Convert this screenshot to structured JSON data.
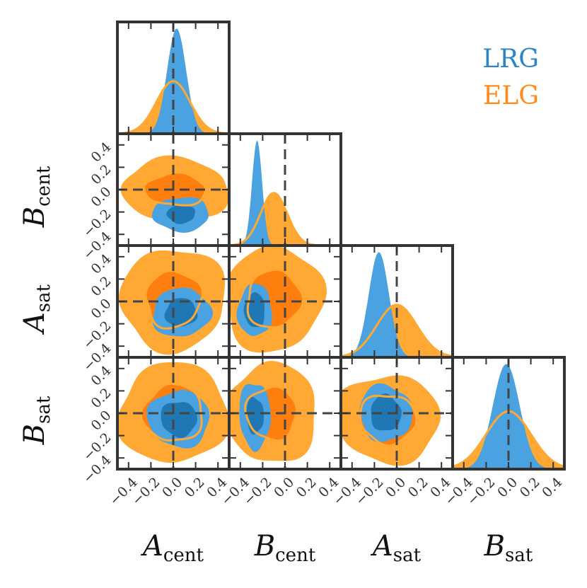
{
  "chart_data": {
    "type": "corner",
    "parameters": [
      {
        "key": "A_cent",
        "label_main": "A",
        "label_sub": "cent",
        "range": [
          -0.5,
          0.5
        ],
        "truth": 0.0
      },
      {
        "key": "B_cent",
        "label_main": "B",
        "label_sub": "cent",
        "range": [
          -0.5,
          0.5
        ],
        "truth": 0.0
      },
      {
        "key": "A_sat",
        "label_main": "A",
        "label_sub": "sat",
        "range": [
          -0.5,
          0.5
        ],
        "truth": 0.0
      },
      {
        "key": "B_sat",
        "label_main": "B",
        "label_sub": "sat",
        "range": [
          -0.5,
          0.5
        ],
        "truth": 0.0
      }
    ],
    "tick_values": [
      -0.4,
      -0.2,
      0.0,
      0.2,
      0.4
    ],
    "tick_labels": [
      "−0.4",
      "−0.2",
      "0.0",
      "0.2",
      "0.4"
    ],
    "series": [
      {
        "name": "LRG",
        "color_dark": "#1f77b4",
        "color_light": "#4aa3e0",
        "marginals": [
          {
            "mean": 0.03,
            "sd": 0.085,
            "peak": 1.0
          },
          {
            "mean": -0.25,
            "sd": 0.045,
            "peak": 1.0
          },
          {
            "mean": -0.16,
            "sd": 0.09,
            "peak": 1.0
          },
          {
            "mean": -0.02,
            "sd": 0.12,
            "peak": 1.0
          }
        ]
      },
      {
        "name": "ELG",
        "color_dark": "#ff7f0e",
        "color_light": "#ffa833",
        "marginals": [
          {
            "mean": 0.0,
            "sd": 0.15,
            "peak": 0.5
          },
          {
            "mean": -0.1,
            "sd": 0.12,
            "peak": 0.5
          },
          {
            "mean": 0.0,
            "sd": 0.18,
            "peak": 0.5
          },
          {
            "mean": 0.0,
            "sd": 0.2,
            "peak": 0.55
          }
        ]
      }
    ],
    "contours": [
      {
        "x": "A_cent",
        "y": "B_cent",
        "ELG": {
          "cx": 0.02,
          "cy": 0.0,
          "rx68": 0.28,
          "ry68": 0.14,
          "rx95": 0.48,
          "ry95": 0.28
        },
        "LRG": {
          "cx": 0.07,
          "cy": -0.22,
          "rx68": 0.13,
          "ry68": 0.08,
          "rx95": 0.26,
          "ry95": 0.15
        }
      },
      {
        "x": "A_cent",
        "y": "A_sat",
        "ELG": {
          "cx": 0.0,
          "cy": 0.02,
          "rx68": 0.25,
          "ry68": 0.25,
          "rx95": 0.48,
          "ry95": 0.45
        },
        "LRG": {
          "cx": 0.07,
          "cy": -0.1,
          "rx68": 0.14,
          "ry68": 0.13,
          "rx95": 0.26,
          "ry95": 0.22
        }
      },
      {
        "x": "A_cent",
        "y": "B_sat",
        "ELG": {
          "cx": 0.0,
          "cy": 0.0,
          "rx68": 0.26,
          "ry68": 0.26,
          "rx95": 0.48,
          "ry95": 0.46
        },
        "LRG": {
          "cx": 0.05,
          "cy": -0.05,
          "rx68": 0.16,
          "ry68": 0.16,
          "rx95": 0.27,
          "ry95": 0.26
        }
      },
      {
        "x": "B_cent",
        "y": "A_sat",
        "ELG": {
          "cx": -0.1,
          "cy": 0.02,
          "rx68": 0.24,
          "ry68": 0.26,
          "rx95": 0.44,
          "ry95": 0.47
        },
        "LRG": {
          "cx": -0.27,
          "cy": -0.08,
          "rx68": 0.09,
          "ry68": 0.16,
          "rx95": 0.15,
          "ry95": 0.24
        }
      },
      {
        "x": "B_cent",
        "y": "B_sat",
        "ELG": {
          "cx": -0.12,
          "cy": 0.0,
          "rx68": 0.22,
          "ry68": 0.24,
          "rx95": 0.4,
          "ry95": 0.46
        },
        "LRG": {
          "cx": -0.27,
          "cy": -0.02,
          "rx68": 0.08,
          "ry68": 0.16,
          "rx95": 0.14,
          "ry95": 0.3
        }
      },
      {
        "x": "A_sat",
        "y": "B_sat",
        "ELG": {
          "cx": -0.08,
          "cy": -0.05,
          "rx68": 0.25,
          "ry68": 0.22,
          "rx95": 0.46,
          "ry95": 0.4
        },
        "LRG": {
          "cx": -0.1,
          "cy": 0.0,
          "rx68": 0.14,
          "ry68": 0.16,
          "rx95": 0.24,
          "ry95": 0.25
        }
      }
    ],
    "legend": {
      "placement": "top-right",
      "entries": [
        "LRG",
        "ELG"
      ]
    }
  }
}
